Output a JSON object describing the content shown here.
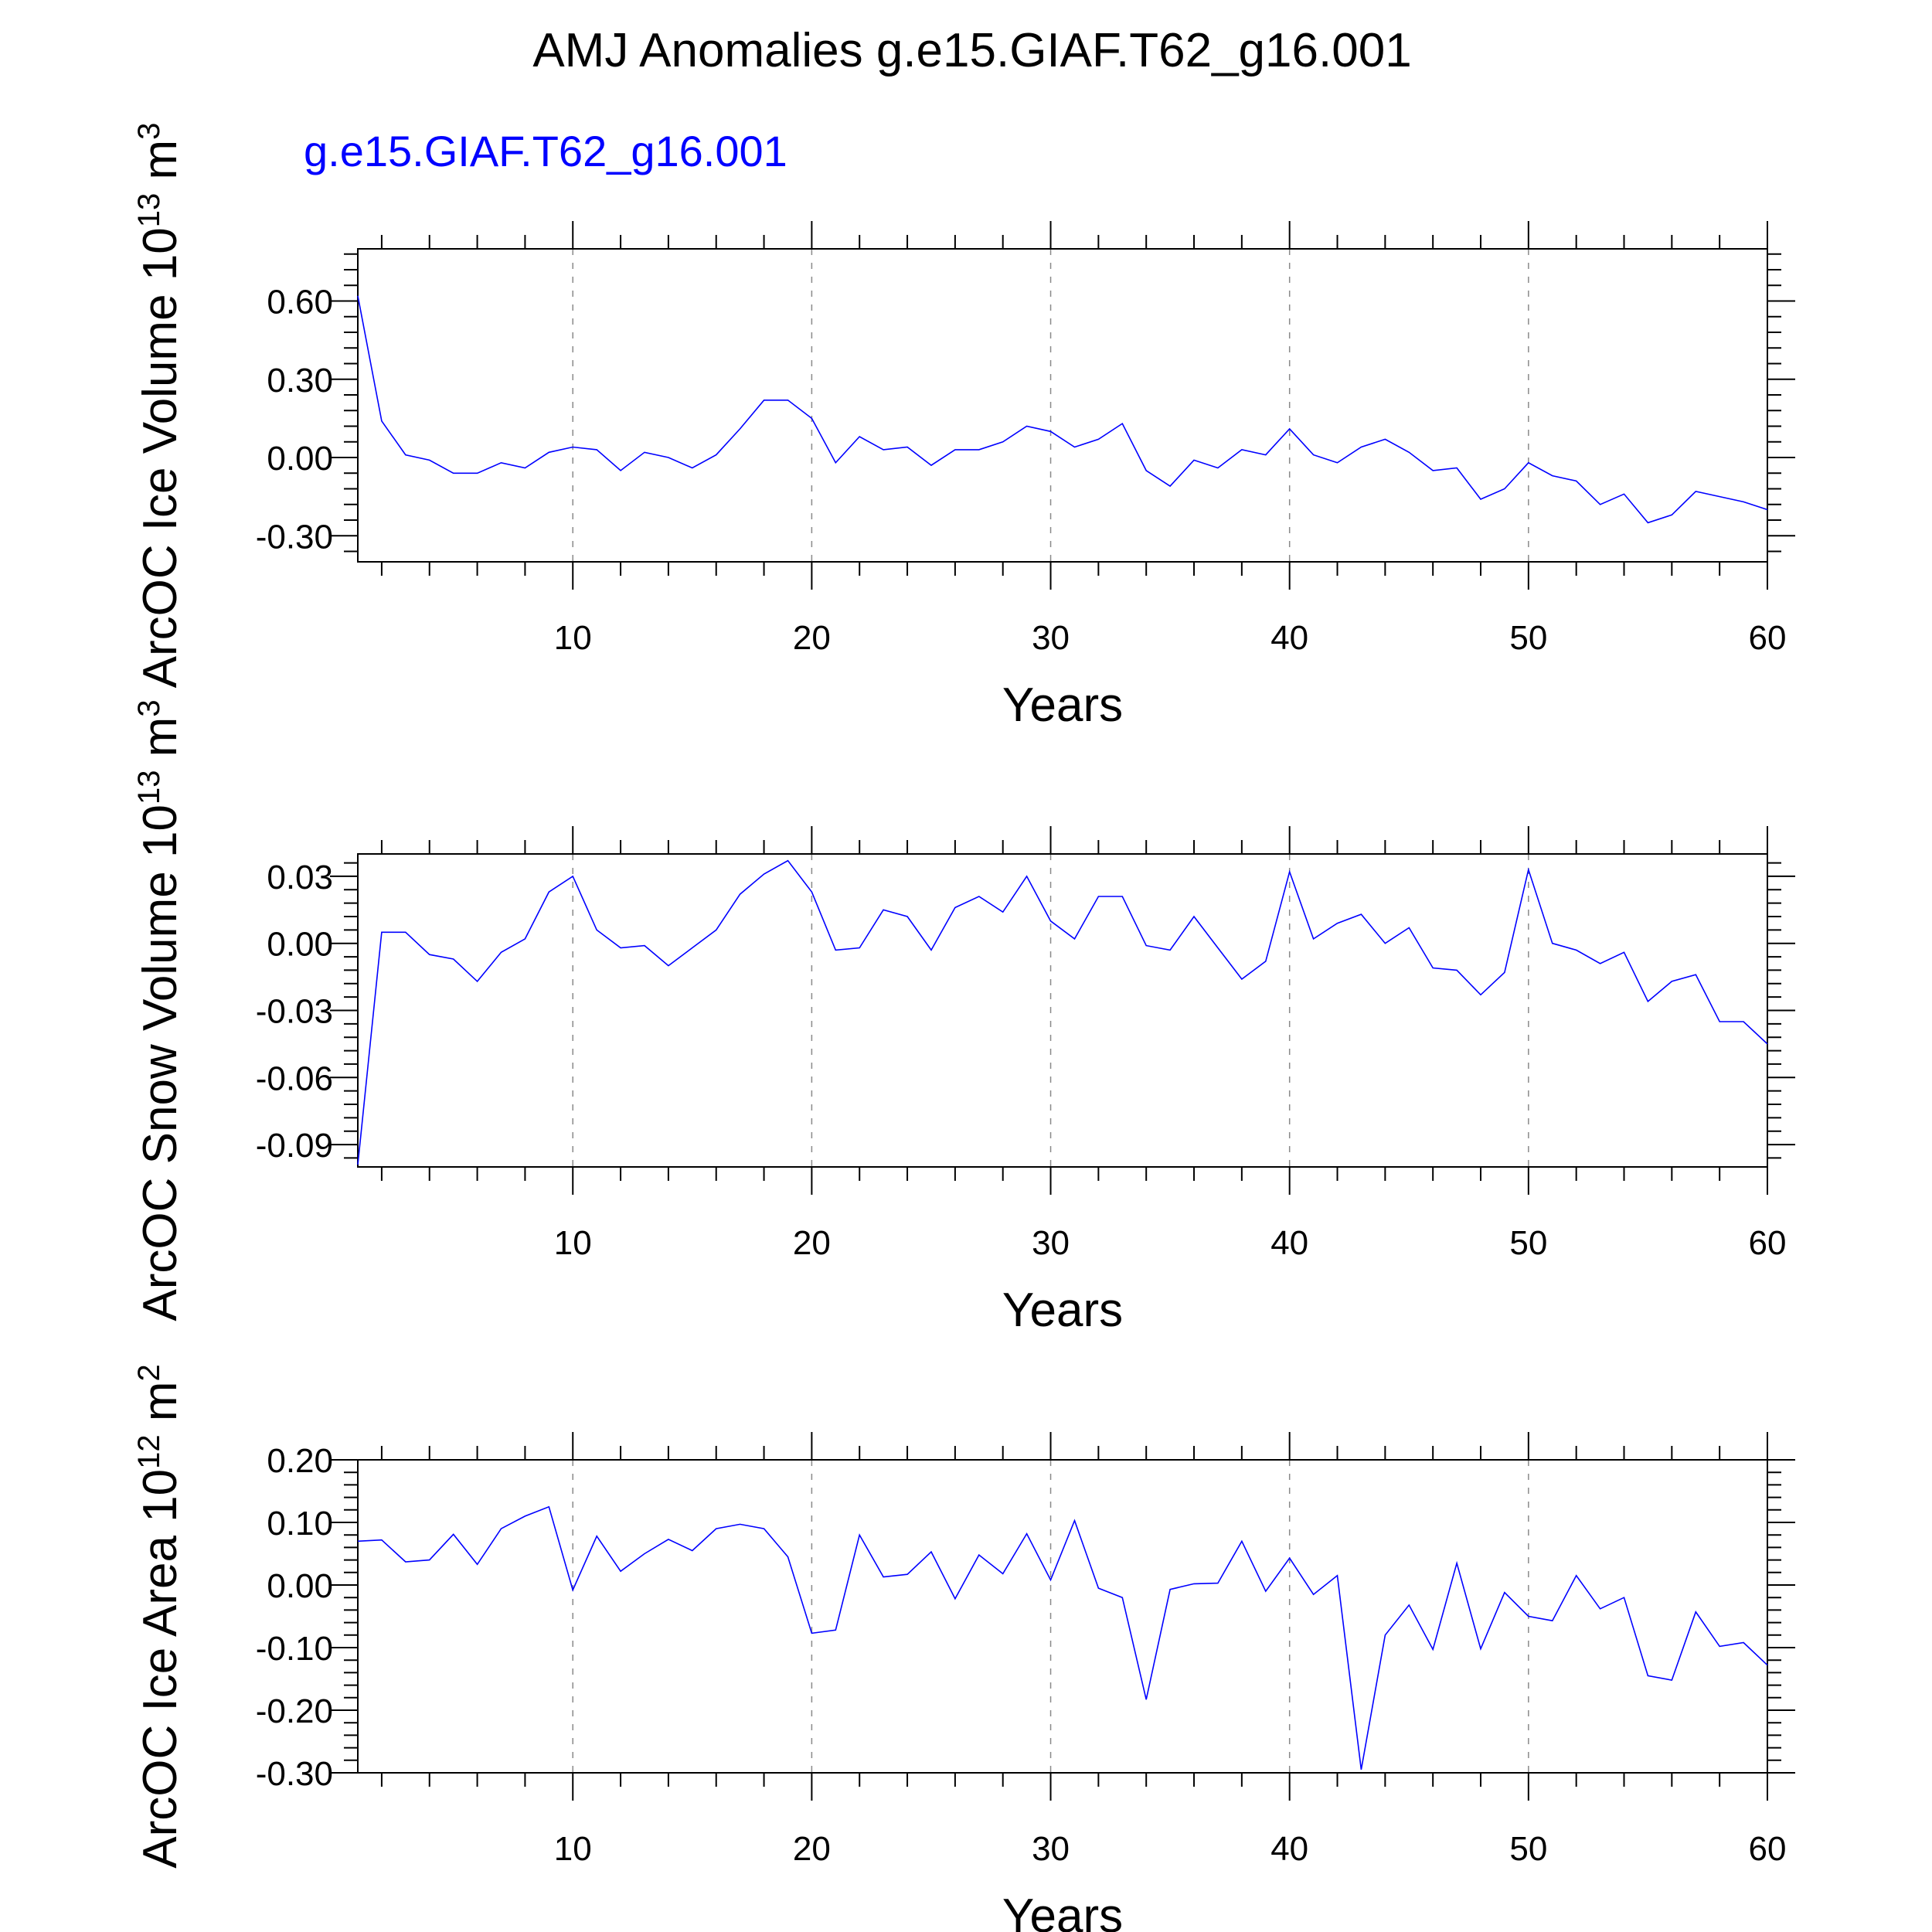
{
  "figure": {
    "title": "AMJ Anomalies g.e15.GIAF.T62_g16.001",
    "legend": "g.e15.GIAF.T62_g16.001",
    "series_color": "#0000ff",
    "grid_color": "#8a8a8a",
    "axis_color": "#000000"
  },
  "chart_data": [
    {
      "type": "line",
      "title": "AMJ Anomalies g.e15.GIAF.T62_g16.001",
      "ylabel": "ArcOC Ice Volume 10¹³ m³",
      "ylabel_main": "ArcOC Ice Volume 10",
      "ylabel_exp": "13",
      "ylabel_unit": "m",
      "ylabel_unit_exp": "3",
      "xlabel": "Years",
      "xlim": [
        1,
        60
      ],
      "ylim": [
        -0.4,
        0.8
      ],
      "xticks": [
        10,
        20,
        30,
        40,
        50,
        60
      ],
      "yticks": [
        -0.3,
        0.0,
        0.3,
        0.6
      ],
      "ytick_labels": [
        "-0.30",
        "0.00",
        "0.30",
        "0.60"
      ],
      "vgrid": [
        10,
        20,
        30,
        40,
        50
      ],
      "series": [
        {
          "name": "g.e15.GIAF.T62_g16.001",
          "x": [
            1,
            2,
            3,
            4,
            5,
            6,
            7,
            8,
            9,
            10,
            11,
            12,
            13,
            14,
            15,
            16,
            17,
            18,
            19,
            20,
            21,
            22,
            23,
            24,
            25,
            26,
            27,
            28,
            29,
            30,
            31,
            32,
            33,
            34,
            35,
            36,
            37,
            38,
            39,
            40,
            41,
            42,
            43,
            44,
            45,
            46,
            47,
            48,
            49,
            50,
            51,
            52,
            53,
            54,
            55,
            56,
            57,
            58,
            59,
            60
          ],
          "values": [
            0.62,
            0.14,
            0.01,
            -0.01,
            -0.06,
            -0.06,
            -0.02,
            -0.04,
            0.02,
            0.04,
            0.03,
            -0.05,
            0.02,
            0.0,
            -0.04,
            0.01,
            0.11,
            0.22,
            0.22,
            0.15,
            -0.02,
            0.08,
            0.03,
            0.04,
            -0.03,
            0.03,
            0.03,
            0.06,
            0.12,
            0.1,
            0.04,
            0.07,
            0.13,
            -0.05,
            -0.11,
            -0.01,
            -0.04,
            0.03,
            0.01,
            0.11,
            0.01,
            -0.02,
            0.04,
            0.07,
            0.02,
            -0.05,
            -0.04,
            -0.16,
            -0.12,
            -0.02,
            -0.07,
            -0.09,
            -0.18,
            -0.14,
            -0.25,
            -0.22,
            -0.13,
            -0.15,
            -0.17,
            -0.2
          ]
        }
      ]
    },
    {
      "type": "line",
      "ylabel": "ArcOC Snow Volume 10¹³ m³",
      "ylabel_main": "ArcOC Snow Volume 10",
      "ylabel_exp": "13",
      "ylabel_unit": "m",
      "ylabel_unit_exp": "3",
      "xlabel": "Years",
      "xlim": [
        1,
        60
      ],
      "ylim": [
        -0.1,
        0.04
      ],
      "xticks": [
        10,
        20,
        30,
        40,
        50,
        60
      ],
      "yticks": [
        -0.09,
        -0.06,
        -0.03,
        0.0,
        0.03
      ],
      "ytick_labels": [
        "-0.09",
        "-0.06",
        "-0.03",
        "0.00",
        "0.03"
      ],
      "vgrid": [
        10,
        20,
        30,
        40,
        50
      ],
      "series": [
        {
          "name": "g.e15.GIAF.T62_g16.001",
          "x": [
            1,
            2,
            3,
            4,
            5,
            6,
            7,
            8,
            9,
            10,
            11,
            12,
            13,
            14,
            15,
            16,
            17,
            18,
            19,
            20,
            21,
            22,
            23,
            24,
            25,
            26,
            27,
            28,
            29,
            30,
            31,
            32,
            33,
            34,
            35,
            36,
            37,
            38,
            39,
            40,
            41,
            42,
            43,
            44,
            45,
            46,
            47,
            48,
            49,
            50,
            51,
            52,
            53,
            54,
            55,
            56,
            57,
            58,
            59,
            60
          ],
          "values": [
            -0.099,
            0.005,
            0.005,
            -0.005,
            -0.007,
            -0.017,
            -0.004,
            0.002,
            0.023,
            0.03,
            0.006,
            -0.002,
            -0.001,
            -0.01,
            -0.002,
            0.006,
            0.022,
            0.031,
            0.037,
            0.023,
            -0.003,
            -0.002,
            0.015,
            0.012,
            -0.003,
            0.016,
            0.021,
            0.014,
            0.03,
            0.01,
            0.002,
            0.021,
            0.021,
            -0.001,
            -0.003,
            0.012,
            -0.002,
            -0.016,
            -0.008,
            0.032,
            0.002,
            0.009,
            0.013,
            0.0,
            0.007,
            -0.011,
            -0.012,
            -0.023,
            -0.013,
            0.033,
            0.0,
            -0.003,
            -0.009,
            -0.004,
            -0.026,
            -0.017,
            -0.014,
            -0.035,
            -0.035,
            -0.045
          ]
        }
      ]
    },
    {
      "type": "line",
      "ylabel": "ArcOC Ice Area 10¹² m²",
      "ylabel_main": "ArcOC Ice Area 10",
      "ylabel_exp": "12",
      "ylabel_unit": "m",
      "ylabel_unit_exp": "2",
      "xlabel": "Years",
      "xlim": [
        1,
        60
      ],
      "ylim": [
        -0.3,
        0.2
      ],
      "xticks": [
        10,
        20,
        30,
        40,
        50,
        60
      ],
      "yticks": [
        -0.3,
        -0.2,
        -0.1,
        0.0,
        0.1,
        0.2
      ],
      "ytick_labels": [
        "-0.30",
        "-0.20",
        "-0.10",
        "0.00",
        "0.10",
        "0.20"
      ],
      "vgrid": [
        10,
        20,
        30,
        40,
        50
      ],
      "series": [
        {
          "name": "g.e15.GIAF.T62_g16.001",
          "x": [
            1,
            2,
            3,
            4,
            5,
            6,
            7,
            8,
            9,
            10,
            11,
            12,
            13,
            14,
            15,
            16,
            17,
            18,
            19,
            20,
            21,
            22,
            23,
            24,
            25,
            26,
            27,
            28,
            29,
            30,
            31,
            32,
            33,
            34,
            35,
            36,
            37,
            38,
            39,
            40,
            41,
            42,
            43,
            44,
            45,
            46,
            47,
            48,
            49,
            50,
            51,
            52,
            53,
            54,
            55,
            56,
            57,
            58,
            59,
            60
          ],
          "values": [
            0.07,
            0.072,
            0.037,
            0.04,
            0.081,
            0.033,
            0.09,
            0.11,
            0.125,
            -0.008,
            0.078,
            0.022,
            0.05,
            0.073,
            0.055,
            0.09,
            0.097,
            0.09,
            0.045,
            -0.077,
            -0.072,
            0.08,
            0.013,
            0.017,
            0.053,
            -0.022,
            0.048,
            0.018,
            0.082,
            0.008,
            0.103,
            -0.005,
            -0.02,
            -0.183,
            -0.007,
            0.002,
            0.003,
            0.07,
            -0.01,
            0.043,
            -0.015,
            0.015,
            -0.295,
            -0.08,
            -0.032,
            -0.103,
            0.035,
            -0.102,
            -0.012,
            -0.05,
            -0.057,
            0.015,
            -0.038,
            -0.02,
            -0.145,
            -0.152,
            -0.043,
            -0.098,
            -0.092,
            -0.128
          ]
        }
      ]
    }
  ]
}
